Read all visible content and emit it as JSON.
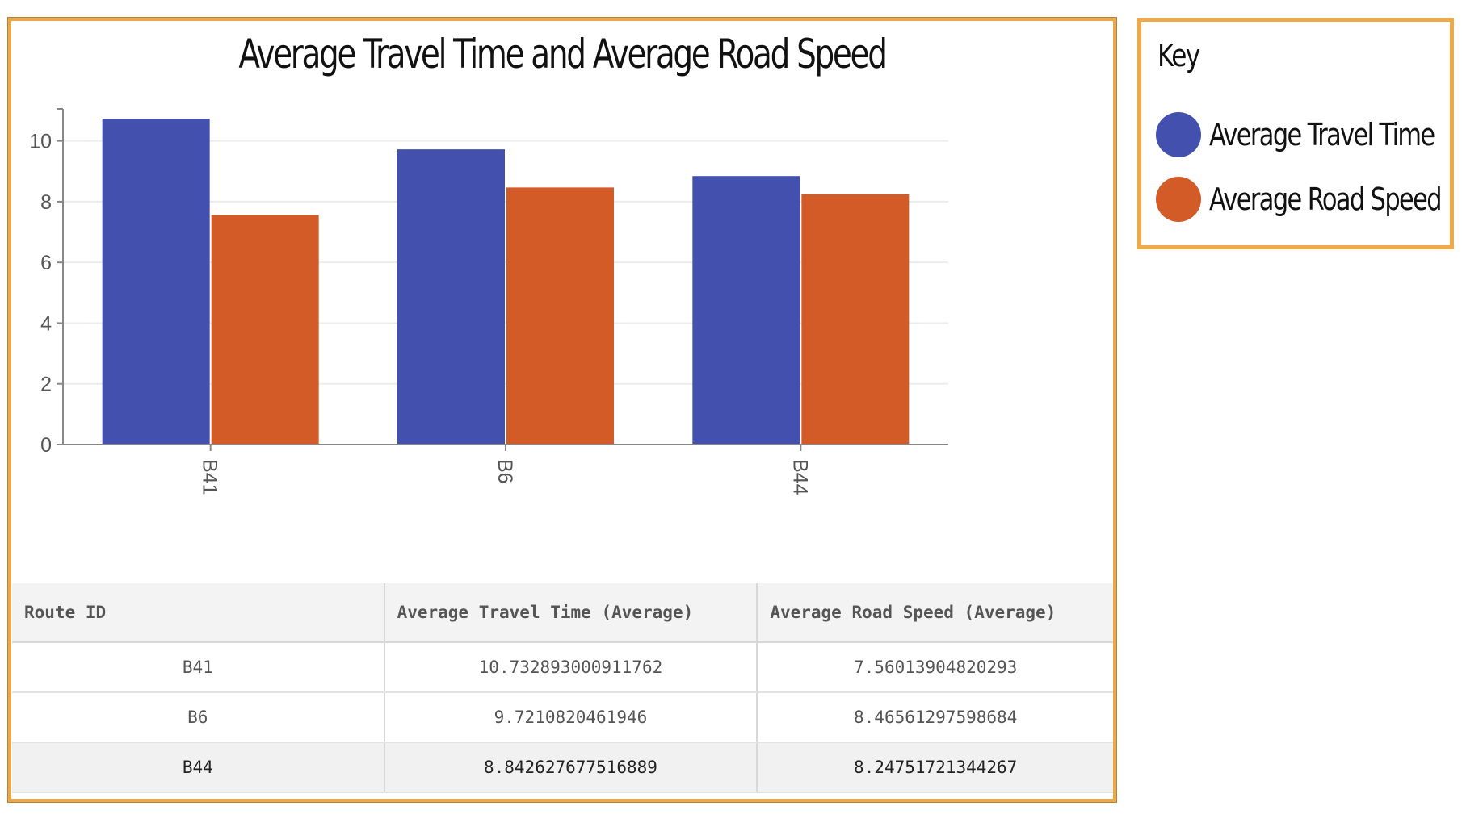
{
  "colors": {
    "travel_time": "#4450ae",
    "road_speed": "#d35b27",
    "panel_border": "#eda94a"
  },
  "chart_data": {
    "type": "bar",
    "title": "Average Travel Time and Average Road Speed",
    "categories": [
      "B41",
      "B6",
      "B44"
    ],
    "series": [
      {
        "name": "Average Travel Time",
        "values": [
          10.732893000911762,
          9.7210820461946,
          8.842627677516889
        ]
      },
      {
        "name": "Average Road Speed",
        "values": [
          7.56013904820293,
          8.46561297598684,
          8.24751721344267
        ]
      }
    ],
    "yticks": [
      0,
      2,
      4,
      6,
      8,
      10
    ],
    "ylim": [
      0,
      11
    ],
    "xlabel": "",
    "ylabel": "",
    "grid": true,
    "legend": "right"
  },
  "table": {
    "headers": [
      "Route ID",
      "Average Travel Time (Average)",
      "Average Road Speed (Average)"
    ],
    "rows": [
      [
        "B41",
        "10.732893000911762",
        "7.56013904820293"
      ],
      [
        "B6",
        "9.7210820461946",
        "8.46561297598684"
      ],
      [
        "B44",
        "8.842627677516889",
        "8.24751721344267"
      ]
    ]
  },
  "key": {
    "title": "Key",
    "items": [
      {
        "label": "Average Travel Time"
      },
      {
        "label": "Average Road Speed"
      }
    ]
  }
}
